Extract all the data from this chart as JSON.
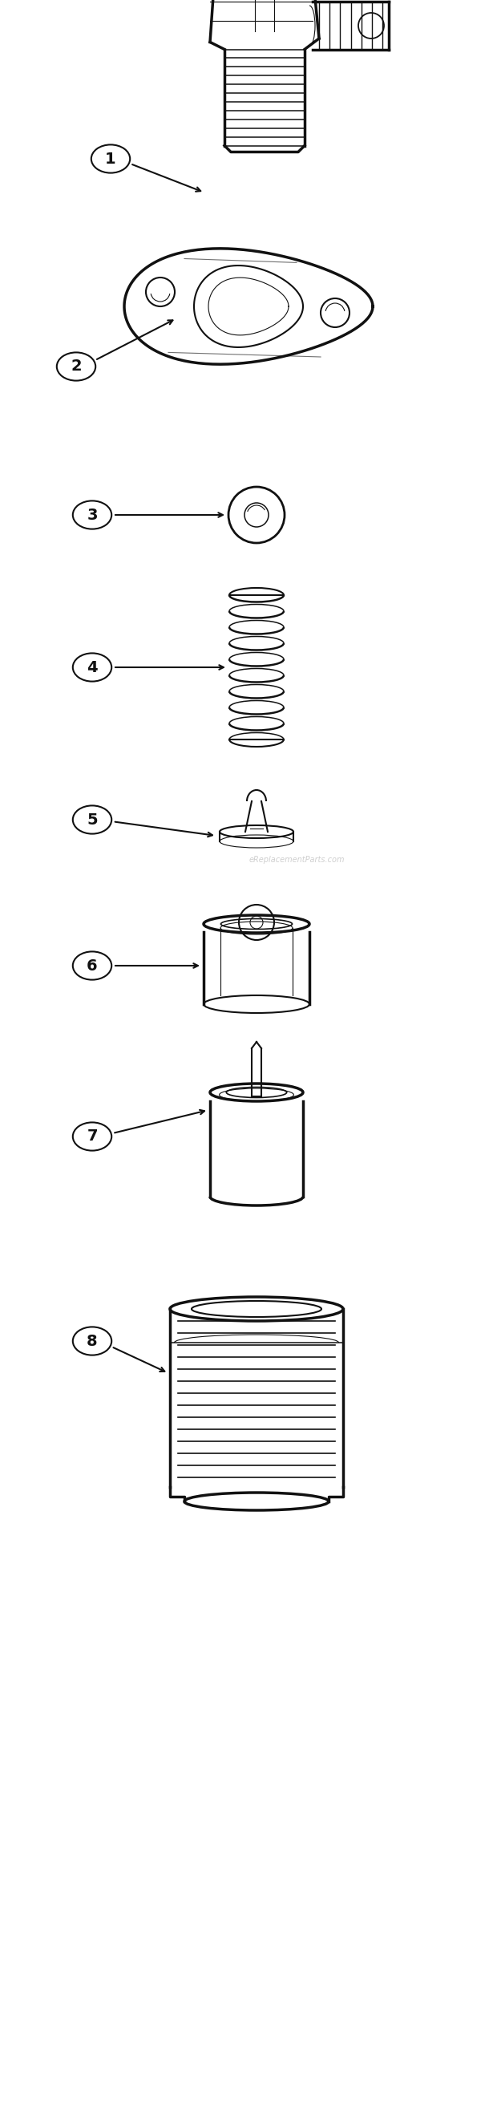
{
  "bg_color": "#ffffff",
  "line_color": "#111111",
  "lw_main": 2.5,
  "lw_thin": 1.5,
  "lw_hair": 0.8,
  "watermark": "eReplacementParts.com",
  "fig_w": 6.2,
  "fig_h": 26.32,
  "parts": [
    {
      "num": 1,
      "bx": 0.18,
      "by": 0.924
    },
    {
      "num": 2,
      "bx": 0.12,
      "by": 0.796
    },
    {
      "num": 3,
      "bx": 0.14,
      "by": 0.639
    },
    {
      "num": 4,
      "bx": 0.14,
      "by": 0.55
    },
    {
      "num": 5,
      "bx": 0.14,
      "by": 0.461
    },
    {
      "num": 6,
      "bx": 0.14,
      "by": 0.372
    },
    {
      "num": 7,
      "bx": 0.14,
      "by": 0.27
    },
    {
      "num": 8,
      "bx": 0.14,
      "by": 0.148
    }
  ]
}
